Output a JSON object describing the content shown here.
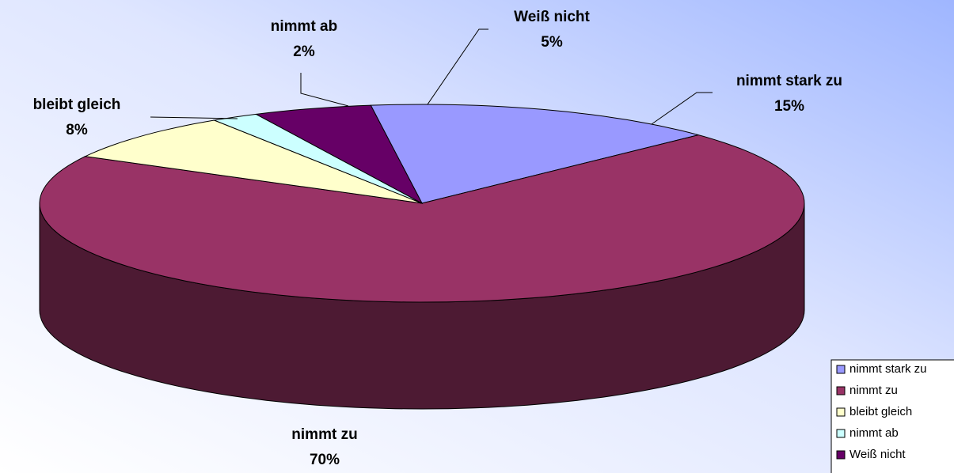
{
  "chart_data": {
    "type": "pie3d",
    "categories": [
      "nimmt stark zu",
      "nimmt zu",
      "bleibt gleich",
      "nimmt ab",
      "Weiß nicht"
    ],
    "values": [
      15,
      70,
      8,
      2,
      5
    ],
    "value_labels": [
      "15%",
      "70%",
      "8%",
      "2%",
      "5%"
    ],
    "colors": [
      "#9999FF",
      "#993366",
      "#FFFFCC",
      "#CCFFFF",
      "#660066"
    ],
    "legend": "bottom-right"
  }
}
